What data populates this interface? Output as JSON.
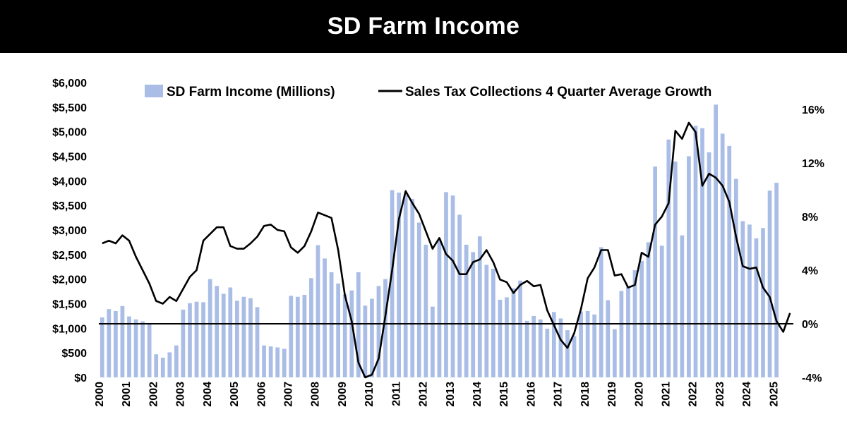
{
  "header": {
    "title": "SD Farm Income"
  },
  "chart_data": {
    "type": "bar+line",
    "legend": [
      {
        "name": "SD Farm Income (Millions)",
        "type": "bar",
        "color": "#a9bde6"
      },
      {
        "name": "Sales Tax Collections 4 Quarter Average Growth",
        "type": "line",
        "color": "#000000"
      }
    ],
    "legend_position": "top",
    "grid": false,
    "x_start_year": 2000,
    "x_end_year": 2025.75,
    "x_tick_labels": [
      "2000",
      "2001",
      "2002",
      "2003",
      "2004",
      "2005",
      "2006",
      "2007",
      "2008",
      "2009",
      "2010",
      "2011",
      "2012",
      "2013",
      "2014",
      "2015",
      "2016",
      "2017",
      "2018",
      "2019",
      "2020",
      "2021",
      "2022",
      "2023",
      "2024",
      "2025"
    ],
    "y_left": {
      "ylim": [
        0,
        6000
      ],
      "tick_values": [
        0,
        500,
        1000,
        1500,
        2000,
        2500,
        3000,
        3500,
        4000,
        4500,
        5000,
        5500,
        6000
      ],
      "tick_labels": [
        "$0",
        "$500",
        "$1,000",
        "$1,500",
        "$2,000",
        "$2,500",
        "$3,000",
        "$3,500",
        "$4,000",
        "$4,500",
        "$5,000",
        "$5,500",
        "$6,000"
      ]
    },
    "y_right": {
      "ylim": [
        -4,
        18
      ],
      "tick_values": [
        -4,
        0,
        4,
        8,
        12,
        16
      ],
      "tick_labels": [
        "-4%",
        "0%",
        "4%",
        "8%",
        "12%",
        "16%"
      ]
    },
    "reference_line": {
      "axis": "right",
      "value": 0
    },
    "series": [
      {
        "name": "SD Farm Income (Millions)",
        "axis": "left",
        "color": "#a9bde6",
        "values": [
          1220,
          1390,
          1350,
          1450,
          1240,
          1180,
          1140,
          1090,
          470,
          400,
          510,
          650,
          1380,
          1510,
          1540,
          1530,
          2000,
          1860,
          1700,
          1830,
          1560,
          1640,
          1610,
          1430,
          650,
          630,
          610,
          580,
          1660,
          1640,
          1680,
          2020,
          2690,
          2420,
          2140,
          1910,
          1690,
          1770,
          2140,
          1460,
          1600,
          1860,
          2000,
          3810,
          3760,
          3710,
          3630,
          3150,
          2700,
          1440,
          2820,
          3770,
          3700,
          3310,
          2700,
          2550,
          2870,
          2290,
          2210,
          1580,
          1630,
          1810,
          1970,
          1150,
          1250,
          1180,
          990,
          1330,
          1200,
          960,
          840,
          1340,
          1350,
          1280,
          2650,
          1570,
          980,
          1760,
          1850,
          2180,
          2370,
          2750,
          4290,
          2680,
          4840,
          4390,
          2890,
          4500,
          5120,
          5070,
          4580,
          5550,
          4960,
          4710,
          4040,
          3180,
          3110,
          2830,
          3040,
          3800,
          3960
        ]
      },
      {
        "name": "Sales Tax Collections 4 Quarter Average Growth",
        "axis": "right",
        "color": "#000000",
        "values": [
          6.0,
          6.2,
          6.0,
          6.6,
          6.2,
          5.0,
          4.0,
          3.0,
          1.7,
          1.5,
          2.0,
          1.7,
          2.6,
          3.5,
          4.0,
          6.2,
          6.7,
          7.2,
          7.2,
          5.8,
          5.6,
          5.6,
          6.0,
          6.5,
          7.3,
          7.4,
          7.0,
          6.9,
          5.7,
          5.3,
          5.8,
          6.9,
          8.3,
          8.1,
          7.9,
          5.5,
          2.1,
          0.2,
          -2.9,
          -4.0,
          -3.8,
          -2.6,
          0.6,
          4.0,
          7.8,
          9.9,
          9.0,
          8.2,
          6.9,
          5.6,
          6.4,
          5.2,
          4.7,
          3.7,
          3.7,
          4.6,
          4.8,
          5.5,
          4.6,
          3.3,
          3.1,
          2.3,
          2.9,
          3.2,
          2.8,
          2.9,
          1.0,
          -0.1,
          -1.2,
          -1.8,
          -0.7,
          1.1,
          3.4,
          4.2,
          5.5,
          5.5,
          3.6,
          3.7,
          2.7,
          2.9,
          5.3,
          5.0,
          7.4,
          8.0,
          9.0,
          14.4,
          13.8,
          15.0,
          14.3,
          10.3,
          11.2,
          10.9,
          10.3,
          9.1,
          6.5,
          4.3,
          4.1,
          4.2,
          2.7,
          2.0,
          0.2,
          -0.6,
          0.8
        ]
      }
    ]
  }
}
